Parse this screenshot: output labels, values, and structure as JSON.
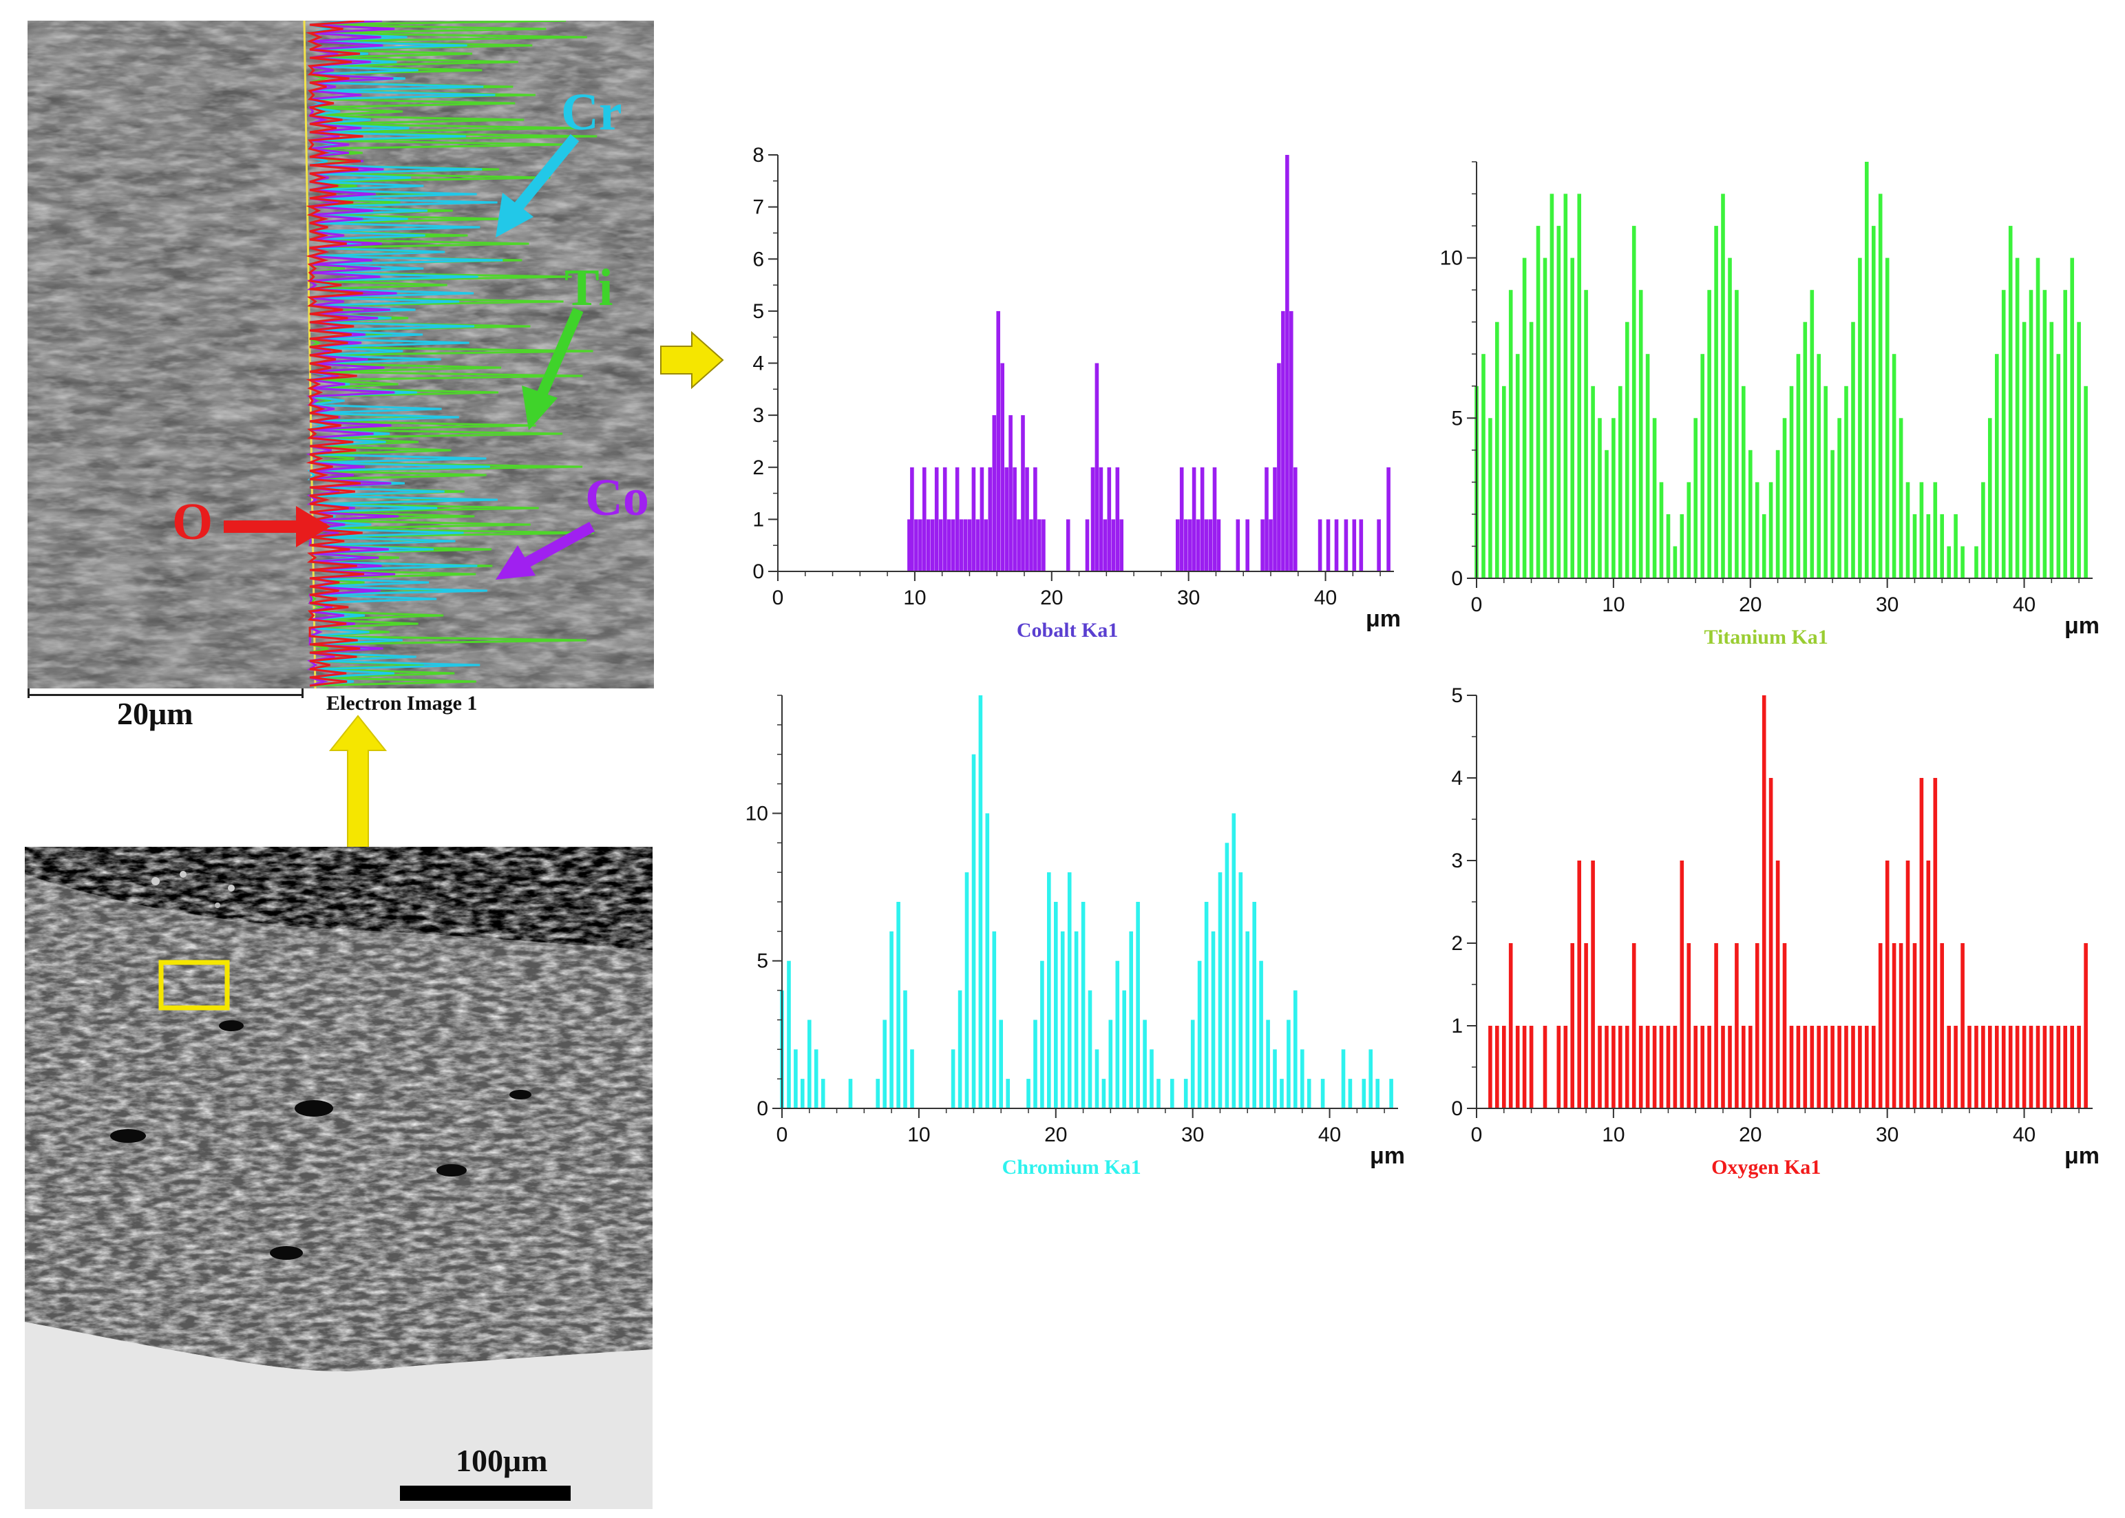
{
  "micrograph_top": {
    "labels": {
      "cr": "Cr",
      "ti": "Ti",
      "o": "O",
      "co": "Co"
    },
    "scale_bar": "20μm",
    "caption": "Electron Image 1",
    "colors": {
      "cr": "#22c8e8",
      "ti": "#4fd62a",
      "o": "#e81c1c",
      "co": "#a020f0"
    }
  },
  "micrograph_bottom": {
    "scale_bar": "100μm",
    "box_color": "#f5e600"
  },
  "arrow_color": "#f5e600",
  "chart_data": [
    {
      "type": "bar",
      "id": "cobalt",
      "title": "",
      "xlabel": "Cobalt Ka1",
      "unit": "μm",
      "color": "#9b1ef0",
      "label_color": "#5a3fd0",
      "xlim": [
        0,
        45
      ],
      "ylim": [
        0,
        8
      ],
      "xticks": [
        0,
        10,
        20,
        30,
        40
      ],
      "yticks": [
        0,
        1,
        2,
        3,
        4,
        5,
        6,
        7,
        8
      ],
      "x": [
        9.6,
        9.8,
        10.1,
        10.4,
        10.7,
        11.0,
        11.3,
        11.6,
        11.9,
        12.2,
        12.5,
        12.8,
        13.1,
        13.4,
        13.7,
        14.0,
        14.3,
        14.6,
        14.9,
        15.2,
        15.5,
        15.8,
        16.1,
        16.4,
        16.7,
        17.0,
        17.3,
        17.6,
        17.9,
        18.2,
        18.5,
        18.8,
        19.1,
        19.4,
        21.2,
        22.6,
        23.0,
        23.3,
        23.6,
        23.9,
        24.2,
        24.5,
        24.8,
        25.1,
        29.2,
        29.5,
        29.8,
        30.1,
        30.4,
        30.7,
        31.0,
        31.3,
        31.6,
        31.9,
        32.2,
        33.6,
        34.3,
        35.4,
        35.7,
        36.0,
        36.3,
        36.6,
        36.9,
        37.2,
        37.5,
        37.8,
        39.6,
        40.2,
        40.8,
        41.5,
        42.1,
        42.6,
        43.9,
        44.6
      ],
      "values": [
        1,
        2,
        1,
        1,
        2,
        1,
        1,
        2,
        1,
        2,
        1,
        1,
        2,
        1,
        1,
        1,
        2,
        1,
        2,
        1,
        2,
        3,
        5,
        4,
        2,
        3,
        2,
        1,
        3,
        2,
        1,
        2,
        1,
        1,
        1,
        1,
        2,
        4,
        2,
        1,
        2,
        1,
        2,
        1,
        1,
        2,
        1,
        1,
        2,
        1,
        2,
        1,
        1,
        2,
        1,
        1,
        1,
        1,
        2,
        1,
        2,
        4,
        5,
        8,
        5,
        2,
        1,
        1,
        1,
        1,
        1,
        1,
        1,
        2
      ]
    },
    {
      "type": "bar",
      "id": "titanium",
      "title": "",
      "xlabel": "Titanium Ka1",
      "unit": "μm",
      "color": "#3cf23c",
      "label_color": "#9acd32",
      "xlim": [
        0,
        45
      ],
      "ylim": [
        0,
        13
      ],
      "xticks": [
        0,
        10,
        20,
        30,
        40
      ],
      "yticks": [
        0,
        5,
        10
      ],
      "x": [
        0.0,
        0.5,
        1.0,
        1.5,
        2.0,
        2.5,
        3.0,
        3.5,
        4.0,
        4.5,
        5.0,
        5.5,
        6.0,
        6.5,
        7.0,
        7.5,
        8.0,
        8.5,
        9.0,
        9.5,
        10.0,
        10.5,
        11.0,
        11.5,
        12.0,
        12.5,
        13.0,
        13.5,
        14.0,
        14.5,
        15.0,
        15.5,
        16.0,
        16.5,
        17.0,
        17.5,
        18.0,
        18.5,
        19.0,
        19.5,
        20.0,
        20.5,
        21.0,
        21.5,
        22.0,
        22.5,
        23.0,
        23.5,
        24.0,
        24.5,
        25.0,
        25.5,
        26.0,
        26.5,
        27.0,
        27.5,
        28.0,
        28.5,
        29.0,
        29.5,
        30.0,
        30.5,
        31.0,
        31.5,
        32.0,
        32.5,
        33.0,
        33.5,
        34.0,
        34.5,
        35.0,
        35.5,
        36.0,
        36.5,
        37.0,
        37.5,
        38.0,
        38.5,
        39.0,
        39.5,
        40.0,
        40.5,
        41.0,
        41.5,
        42.0,
        42.5,
        43.0,
        43.5,
        44.0,
        44.5
      ],
      "values": [
        6,
        7,
        5,
        8,
        6,
        9,
        7,
        10,
        8,
        11,
        10,
        12,
        11,
        12,
        10,
        12,
        9,
        6,
        5,
        4,
        5,
        6,
        8,
        11,
        9,
        7,
        5,
        3,
        2,
        1,
        2,
        3,
        5,
        7,
        9,
        11,
        12,
        10,
        9,
        6,
        4,
        3,
        2,
        3,
        4,
        5,
        6,
        7,
        8,
        9,
        7,
        6,
        4,
        5,
        6,
        8,
        10,
        13,
        11,
        12,
        10,
        7,
        5,
        3,
        2,
        3,
        2,
        3,
        2,
        1,
        2,
        1,
        0,
        1,
        3,
        5,
        7,
        9,
        11,
        10,
        8,
        9,
        10,
        9,
        8,
        7,
        9,
        10,
        8,
        6
      ]
    },
    {
      "type": "bar",
      "id": "chromium",
      "title": "",
      "xlabel": "Chromium Ka1",
      "unit": "μm",
      "color": "#2ef2ee",
      "label_color": "#2ef2ee",
      "xlim": [
        0,
        45
      ],
      "ylim": [
        0,
        14
      ],
      "xticks": [
        0,
        10,
        20,
        30,
        40
      ],
      "yticks": [
        0,
        5,
        10
      ],
      "x": [
        0.0,
        0.5,
        1.0,
        1.5,
        2.0,
        2.5,
        3.0,
        3.5,
        4.0,
        4.5,
        5.0,
        5.5,
        6.0,
        6.5,
        7.0,
        7.5,
        8.0,
        8.5,
        9.0,
        9.5,
        10.0,
        10.5,
        11.0,
        11.5,
        12.0,
        12.5,
        13.0,
        13.5,
        14.0,
        14.5,
        15.0,
        15.5,
        16.0,
        16.5,
        17.0,
        17.5,
        18.0,
        18.5,
        19.0,
        19.5,
        20.0,
        20.5,
        21.0,
        21.5,
        22.0,
        22.5,
        23.0,
        23.5,
        24.0,
        24.5,
        25.0,
        25.5,
        26.0,
        26.5,
        27.0,
        27.5,
        28.0,
        28.5,
        29.0,
        29.5,
        30.0,
        30.5,
        31.0,
        31.5,
        32.0,
        32.5,
        33.0,
        33.5,
        34.0,
        34.5,
        35.0,
        35.5,
        36.0,
        36.5,
        37.0,
        37.5,
        38.0,
        38.5,
        39.0,
        39.5,
        40.0,
        40.5,
        41.0,
        41.5,
        42.0,
        42.5,
        43.0,
        43.5,
        44.0,
        44.5
      ],
      "values": [
        4,
        5,
        2,
        1,
        3,
        2,
        1,
        0,
        0,
        0,
        1,
        0,
        0,
        0,
        1,
        3,
        6,
        7,
        4,
        2,
        0,
        0,
        0,
        0,
        0,
        2,
        4,
        8,
        12,
        14,
        10,
        6,
        3,
        1,
        0,
        0,
        1,
        3,
        5,
        8,
        7,
        6,
        8,
        6,
        7,
        4,
        2,
        1,
        3,
        5,
        4,
        6,
        7,
        3,
        2,
        1,
        0,
        1,
        0,
        1,
        3,
        5,
        7,
        6,
        8,
        9,
        10,
        8,
        6,
        7,
        5,
        3,
        2,
        1,
        3,
        4,
        2,
        1,
        0,
        1,
        0,
        0,
        2,
        1,
        0,
        1,
        2,
        1,
        0,
        1
      ]
    },
    {
      "type": "bar",
      "id": "oxygen",
      "title": "",
      "xlabel": "Oxygen Ka1",
      "unit": "μm",
      "color": "#f21a1a",
      "label_color": "#f21a1a",
      "xlim": [
        0,
        45
      ],
      "ylim": [
        0,
        5
      ],
      "xticks": [
        0,
        10,
        20,
        30,
        40
      ],
      "yticks": [
        0,
        1,
        2,
        3,
        4,
        5
      ],
      "x": [
        0.5,
        1.0,
        1.5,
        2.0,
        2.5,
        3.0,
        3.5,
        4.0,
        4.5,
        5.0,
        5.5,
        6.0,
        6.5,
        7.0,
        7.5,
        8.0,
        8.5,
        9.0,
        9.5,
        10.0,
        10.5,
        11.0,
        11.5,
        12.0,
        12.5,
        13.0,
        13.5,
        14.0,
        14.5,
        15.0,
        15.5,
        16.0,
        16.5,
        17.0,
        17.5,
        18.0,
        18.5,
        19.0,
        19.5,
        20.0,
        20.5,
        21.0,
        21.5,
        22.0,
        22.5,
        23.0,
        23.5,
        24.0,
        24.5,
        25.0,
        25.5,
        26.0,
        26.5,
        27.0,
        27.5,
        28.0,
        28.5,
        29.0,
        29.5,
        30.0,
        30.5,
        31.0,
        31.5,
        32.0,
        32.5,
        33.0,
        33.5,
        34.0,
        34.5,
        35.0,
        35.5,
        36.0,
        36.5,
        37.0,
        37.5,
        38.0,
        38.5,
        39.0,
        39.5,
        40.0,
        40.5,
        41.0,
        41.5,
        42.0,
        42.5,
        43.0,
        43.5,
        44.0,
        44.5
      ],
      "values": [
        0,
        1,
        1,
        1,
        2,
        1,
        1,
        1,
        0,
        1,
        0,
        1,
        1,
        2,
        3,
        2,
        3,
        1,
        1,
        1,
        1,
        1,
        2,
        1,
        1,
        1,
        1,
        1,
        1,
        3,
        2,
        1,
        1,
        1,
        2,
        1,
        1,
        2,
        1,
        1,
        2,
        5,
        4,
        3,
        2,
        1,
        1,
        1,
        1,
        1,
        1,
        1,
        1,
        1,
        1,
        1,
        1,
        1,
        2,
        3,
        2,
        2,
        3,
        2,
        4,
        3,
        4,
        2,
        1,
        1,
        2,
        1,
        1,
        1,
        1,
        1,
        1,
        1,
        1,
        1,
        1,
        1,
        1,
        1,
        1,
        1,
        1,
        1,
        2
      ]
    }
  ]
}
